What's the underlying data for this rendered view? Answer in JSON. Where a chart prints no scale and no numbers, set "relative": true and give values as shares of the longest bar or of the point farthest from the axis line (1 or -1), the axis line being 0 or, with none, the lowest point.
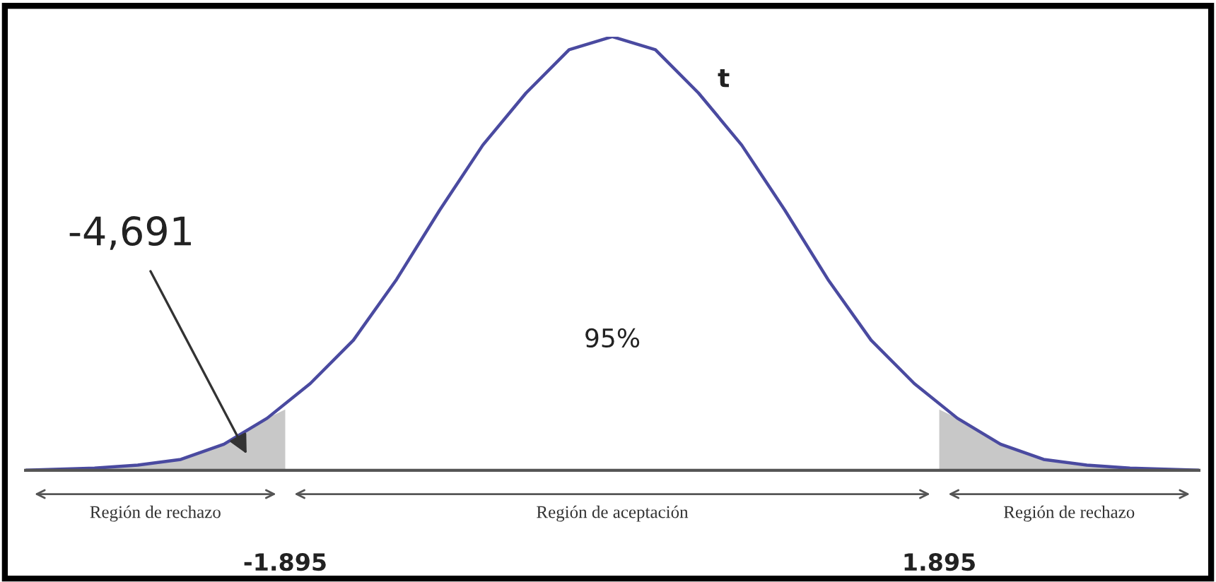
{
  "chart_data": {
    "type": "line",
    "relative": true,
    "x": [
      -3.4,
      -3.0,
      -2.75,
      -2.5,
      -2.25,
      -2.0,
      -1.75,
      -1.5,
      -1.25,
      -1.0,
      -0.75,
      -0.5,
      -0.25,
      0,
      0.25,
      0.5,
      0.75,
      1.0,
      1.25,
      1.5,
      1.75,
      2.0,
      2.25,
      2.5,
      2.75,
      3.0,
      3.4
    ],
    "series": [
      {
        "type": "area",
        "color": "#c8c8c8",
        "x": [
          -3.4,
          -3.0,
          -2.75,
          -2.5,
          -2.25,
          -2.0,
          -1.895
        ],
        "values": [
          0.0,
          0.005,
          0.012,
          0.025,
          0.06,
          0.12,
          0.14
        ]
      },
      {
        "type": "area",
        "color": "#c8c8c8",
        "x": [
          1.895,
          2.0,
          2.25,
          2.5,
          2.75,
          3.0,
          3.4
        ],
        "values": [
          0.14,
          0.12,
          0.06,
          0.025,
          0.012,
          0.005,
          0.0
        ]
      },
      {
        "color": "#4a4aa0",
        "values": [
          0.0,
          0.005,
          0.012,
          0.025,
          0.06,
          0.12,
          0.2,
          0.3,
          0.44,
          0.6,
          0.75,
          0.87,
          0.97,
          1.0,
          0.97,
          0.87,
          0.75,
          0.6,
          0.44,
          0.3,
          0.2,
          0.12,
          0.06,
          0.025,
          0.012,
          0.005,
          0.0
        ]
      }
    ],
    "xlim": [
      -3.4,
      3.4
    ],
    "xticks": [
      -1.895,
      1.895
    ],
    "annotations": [
      "t",
      "95%",
      "-4,691",
      "Región de rechazo",
      "Región de aceptación",
      "Región de rechazo"
    ],
    "marker": "none",
    "line_style": "solid"
  }
}
